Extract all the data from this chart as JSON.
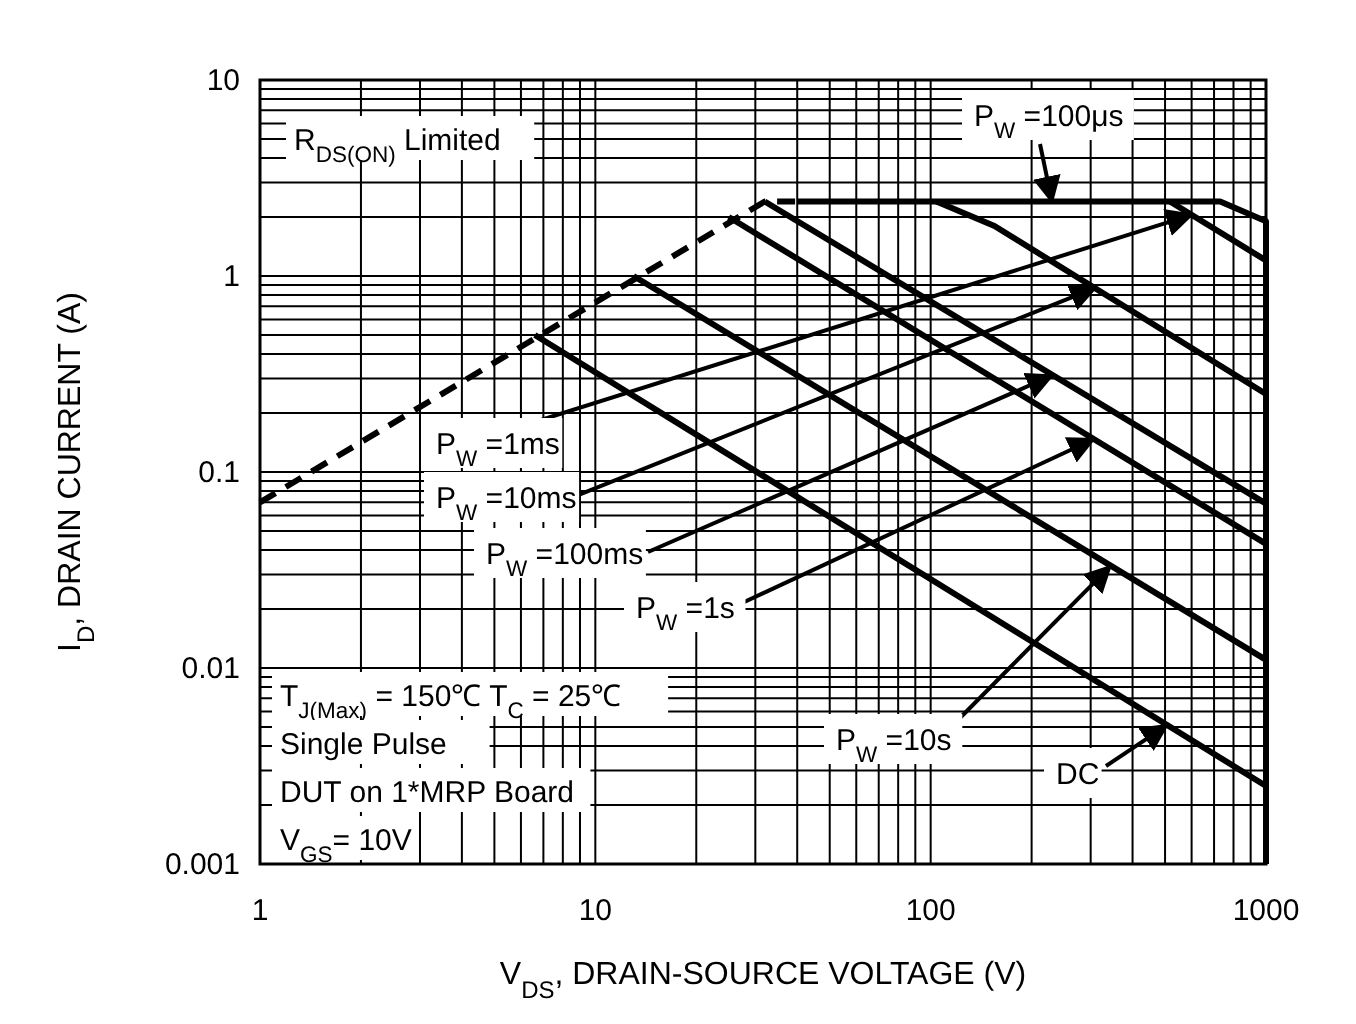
{
  "chart_data": {
    "type": "line",
    "xlabel": "V$_{DS}$, DRAIN-SOURCE VOLTAGE (V)",
    "ylabel": "I$_{D}$, DRAIN CURRENT (A)",
    "log": "xy",
    "grid": true,
    "xlim": [
      1,
      1000
    ],
    "ylim": [
      0.001,
      10
    ],
    "xticks": [
      1,
      10,
      100,
      1000
    ],
    "yticks": [
      0.001,
      0.01,
      0.1,
      1,
      10
    ],
    "series": [
      {
        "color": "#000000",
        "line_style": "dashed",
        "x": [
          1,
          32,
          40
        ],
        "values": [
          0.07,
          2.4,
          2.4
        ]
      },
      {
        "color": "#000000",
        "x": [
          40,
          730,
          1000,
          1000
        ],
        "values": [
          2.4,
          2.4,
          1.9,
          0.001
        ]
      },
      {
        "color": "#000000",
        "x": [
          517,
          1000
        ],
        "values": [
          2.4,
          1.2
        ]
      },
      {
        "color": "#000000",
        "x": [
          104,
          155,
          1000
        ],
        "values": [
          2.4,
          1.8,
          0.25
        ]
      },
      {
        "color": "#000000",
        "x": [
          32,
          1000
        ],
        "values": [
          2.4,
          0.069
        ]
      },
      {
        "color": "#000000",
        "x": [
          25,
          1000
        ],
        "values": [
          2.0,
          0.043
        ]
      },
      {
        "color": "#000000",
        "x": [
          13,
          1000
        ],
        "values": [
          1.0,
          0.011
        ]
      },
      {
        "color": "#000000",
        "x": [
          6.6,
          1000
        ],
        "values": [
          0.5,
          0.0025
        ]
      }
    ],
    "annotations": [
      "R$_{DS(ON)}$ Limited",
      "T$_{J(Max)}$ = 150℃  T$_{C}$ = 25℃",
      "Single Pulse",
      "DUT on 1*MRP Board",
      "V$_{GS}$= 10V",
      {
        "text": "P$_{W}$ =100μs",
        "x": 230,
        "y": 2.4
      },
      {
        "text": "P$_{W}$ =1ms",
        "x": 600,
        "y": 2.05
      },
      {
        "text": "P$_{W}$ =10ms",
        "x": 310,
        "y": 0.87
      },
      {
        "text": "P$_{W}$ =100ms",
        "x": 230,
        "y": 0.31
      },
      {
        "text": "P$_{W}$ =1s",
        "x": 306,
        "y": 0.147
      },
      {
        "text": "P$_{W}$ =10s",
        "x": 343,
        "y": 0.033
      },
      {
        "text": "DC",
        "x": 506,
        "y": 0.0051
      }
    ]
  }
}
